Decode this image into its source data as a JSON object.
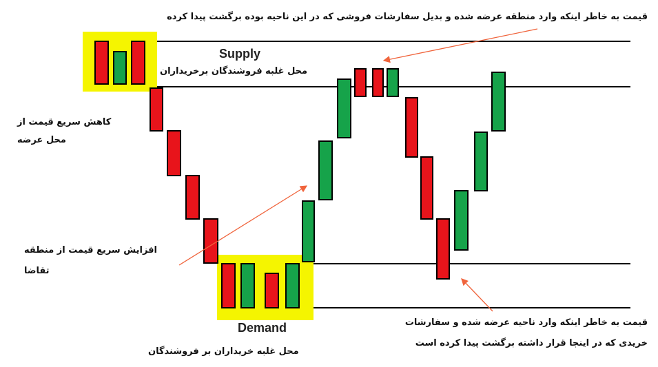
{
  "title": "قیمت به خاطر اینکه وارد منطقه عرضه شده و بدیل سفارشات فروشی که در این ناحیه بوده برگشت پیدا کرده",
  "supply": {
    "label": "Supply",
    "caption": "محل غلبه فروشندگان برخریداران"
  },
  "demand": {
    "label": "Demand",
    "caption": "محل غلبه خریداران بر فروشندگان"
  },
  "notes": {
    "drop": [
      "کاهش سریع قیمت از",
      "محل عرضه"
    ],
    "rise": [
      "افزایش سریع قیمت از منطقه",
      "تقاضا"
    ],
    "bounce": [
      "قیمت به خاطر اینکه وارد ناحیه عرضه شده و سفارشات",
      "خریدی که در اینجا قرار داشته برگشت پیدا کرده است"
    ]
  }
}
